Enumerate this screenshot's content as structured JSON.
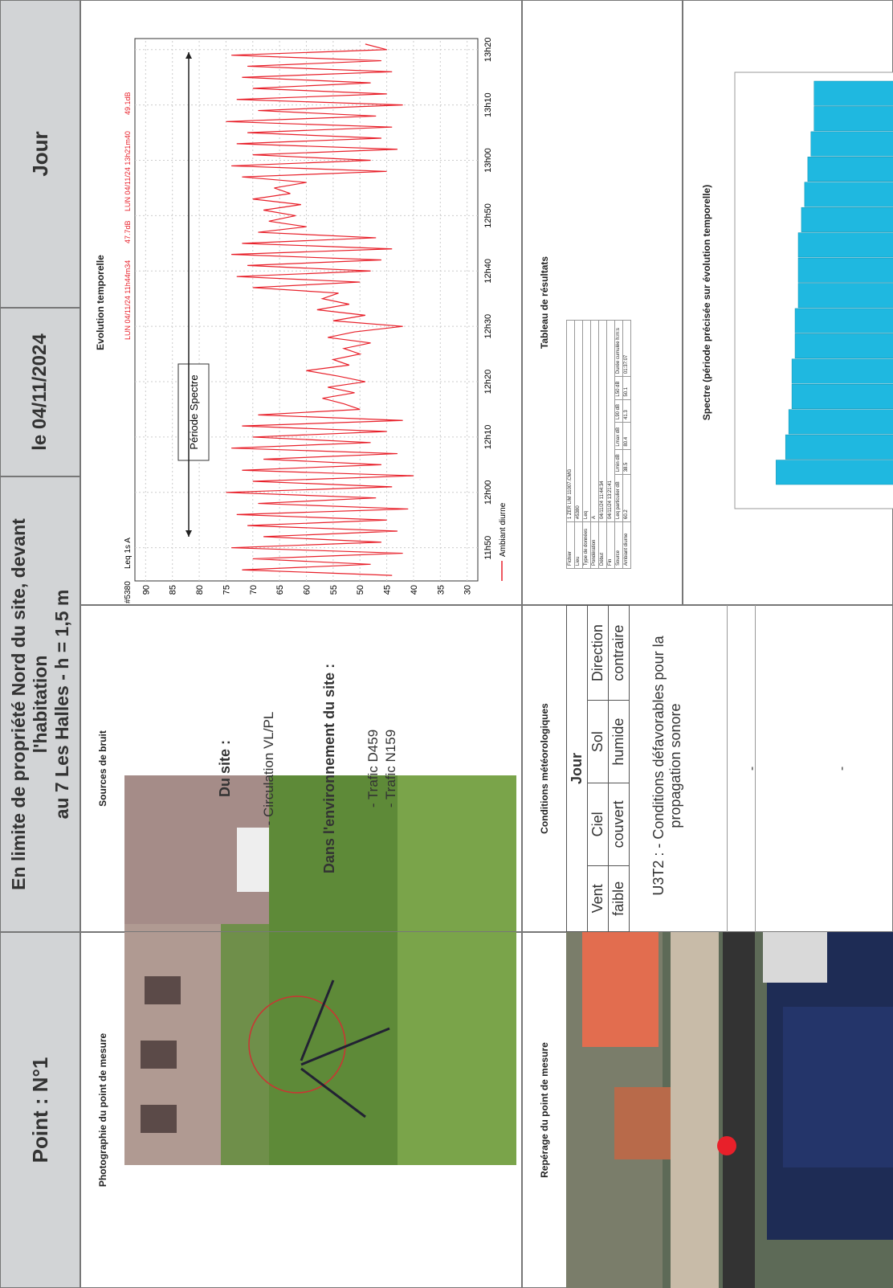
{
  "header": {
    "point": "Point : N°1",
    "title_line1": "En limite de propriété Nord du site, devant l'habitation",
    "title_line2": "au 7 Les Halles - h = 1,5 m",
    "date": "le 04/11/2024",
    "period": "Jour"
  },
  "photo": {
    "title": "Photographie du point de mesure"
  },
  "sources": {
    "title": "Sources de bruit",
    "site_heading": "Du site :",
    "site_items": [
      "- Circulation VL/PL"
    ],
    "env_heading": "Dans l'environnement du site :",
    "env_items": [
      "- Trafic D459",
      "- Trafic N159"
    ]
  },
  "location": {
    "title": "Repérage du point de mesure"
  },
  "weather": {
    "title": "Conditions météorologiques",
    "period": "Jour",
    "headers": [
      "Vent",
      "Ciel",
      "Sol",
      "Direction"
    ],
    "values": [
      "faible",
      "couvert",
      "humide",
      "contraire"
    ],
    "note": "U3T2 : - Conditions défavorables pour la propagation sonore"
  },
  "extra_rows": [
    "-",
    "-"
  ],
  "results_table": {
    "title": "Tableau de résultats",
    "info_rows": [
      [
        "Fichier",
        "1 ZER LIM 11007.CMG"
      ],
      [
        "Lieu",
        "#5380"
      ],
      [
        "Type de données",
        "Leq"
      ],
      [
        "Pondération",
        "A"
      ],
      [
        "Début",
        "04/11/24 11:44:34"
      ],
      [
        "Fin",
        "04/11/24 13:21:41"
      ]
    ],
    "columns": [
      "Source",
      "Leq particulier dB",
      "Lmin dB",
      "Lmax dB",
      "L90 dB",
      "L50 dB",
      "Durée cumulée h:m:s"
    ],
    "rows": [
      [
        "Ambiant diurne",
        "60.2",
        "38.5",
        "80.4",
        "41.3",
        "50.1",
        "01:37:07"
      ]
    ]
  },
  "chart_data": [
    {
      "type": "line",
      "title": "Evolution temporelle",
      "instrument": "#5380",
      "index": "Leq 1s A",
      "start_label": "LUN 04/11/24 11h44m34",
      "start_value": "47.7dB",
      "end_label": "LUN 04/11/24 13h21m40",
      "end_value": "49.1dB",
      "annotation": "Période Spectre",
      "x": [
        705,
        706,
        707,
        708,
        709,
        710,
        711,
        712,
        713,
        714,
        715,
        716,
        717,
        718,
        719,
        720,
        721,
        722,
        723,
        724,
        725,
        726,
        727,
        728,
        729,
        730,
        731,
        732,
        733,
        734,
        735,
        736,
        737,
        738,
        739,
        740,
        741,
        742,
        743,
        744,
        745,
        746,
        747,
        748,
        749,
        750,
        751,
        752,
        753,
        754,
        755,
        756,
        757,
        758,
        759,
        760,
        761,
        762,
        763,
        764,
        765,
        766,
        767,
        768,
        769,
        770,
        771,
        772,
        773,
        774,
        775,
        776,
        777,
        778,
        779,
        780,
        781,
        782,
        783,
        784,
        785,
        786,
        787,
        788,
        789,
        790,
        791,
        792,
        793,
        794,
        795,
        796,
        797,
        798,
        799,
        800,
        801
      ],
      "series": [
        {
          "name": "Ambiant diurne",
          "color": "#e8202a",
          "values": [
            44,
            72,
            48,
            70,
            42,
            74,
            46,
            68,
            43,
            71,
            45,
            73,
            41,
            69,
            47,
            75,
            44,
            70,
            40,
            72,
            46,
            68,
            43,
            74,
            48,
            70,
            45,
            72,
            42,
            69,
            50,
            53,
            57,
            51,
            56,
            49,
            54,
            60,
            52,
            55,
            50,
            53,
            48,
            56,
            51,
            42,
            55,
            49,
            58,
            52,
            57,
            54,
            70,
            50,
            73,
            48,
            71,
            46,
            74,
            44,
            72,
            47,
            69,
            60,
            67,
            62,
            68,
            61,
            70,
            63,
            66,
            60,
            72,
            45,
            74,
            48,
            70,
            43,
            73,
            46,
            71,
            44,
            75,
            47,
            69,
            42,
            73,
            45,
            70,
            48,
            72,
            44,
            71,
            46,
            74,
            45,
            49
          ]
        }
      ],
      "xlim": [
        704,
        802
      ],
      "xticks": [
        {
          "value": 710,
          "label": "11h50"
        },
        {
          "value": 720,
          "label": "12h00"
        },
        {
          "value": 730,
          "label": "12h10"
        },
        {
          "value": 740,
          "label": "12h20"
        },
        {
          "value": 750,
          "label": "12h30"
        },
        {
          "value": 760,
          "label": "12h40"
        },
        {
          "value": 770,
          "label": "12h50"
        },
        {
          "value": 780,
          "label": "13h00"
        },
        {
          "value": 790,
          "label": "13h10"
        },
        {
          "value": 800,
          "label": "13h20"
        }
      ],
      "ylim": [
        28,
        92
      ],
      "yticks": [
        30,
        35,
        40,
        45,
        50,
        55,
        60,
        65,
        70,
        75,
        80,
        85,
        90
      ],
      "grid": true
    },
    {
      "type": "bar",
      "title": "Spectre (période précisée sur évolution temporelle)",
      "color": "#1fb8e0",
      "ylim": [
        0,
        100
      ],
      "values": [
        87,
        84,
        83,
        82,
        82,
        81,
        81,
        80,
        80,
        80,
        79,
        78,
        77,
        76,
        75,
        75
      ]
    }
  ]
}
